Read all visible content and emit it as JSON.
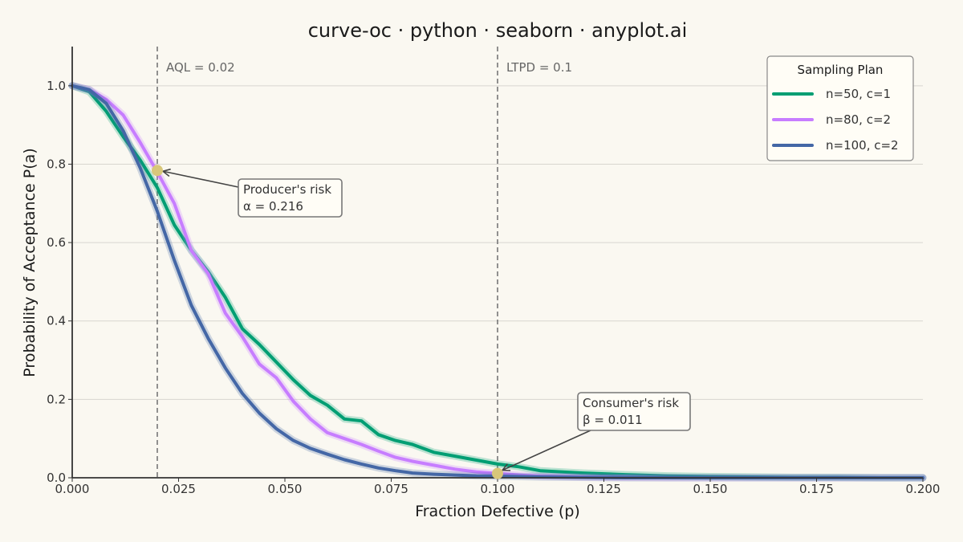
{
  "chart_data": {
    "type": "line",
    "title": "curve-oc · python · seaborn · anyplot.ai",
    "xlabel": "Fraction Defective (p)",
    "ylabel": "Probability of Acceptance P(a)",
    "xlim": [
      0,
      0.2
    ],
    "ylim": [
      0,
      1.1
    ],
    "x_ticks": [
      "0.000",
      "0.025",
      "0.050",
      "0.075",
      "0.100",
      "0.125",
      "0.150",
      "0.175",
      "0.200"
    ],
    "y_ticks": [
      "0.0",
      "0.2",
      "0.4",
      "0.6",
      "0.8",
      "1.0"
    ],
    "grid": "horizontal",
    "legend": {
      "title": "Sampling Plan",
      "placement": "top-right"
    },
    "reference_lines": [
      {
        "label": "AQL = 0.02",
        "x": 0.02
      },
      {
        "label": "LTPD = 0.1",
        "x": 0.1
      }
    ],
    "annotations": [
      {
        "lines": [
          "Producer's risk",
          "α = 0.216"
        ],
        "x": 0.02,
        "y": 0.784
      },
      {
        "lines": [
          "Consumer's risk",
          "β = 0.011"
        ],
        "x": 0.1,
        "y": 0.011
      }
    ],
    "series": [
      {
        "name": "n=50, c=1",
        "color": "#009E73",
        "x": [
          0,
          0.004,
          0.008,
          0.012,
          0.016,
          0.02,
          0.024,
          0.028,
          0.032,
          0.036,
          0.04,
          0.044,
          0.048,
          0.052,
          0.056,
          0.06,
          0.064,
          0.068,
          0.072,
          0.076,
          0.08,
          0.085,
          0.09,
          0.095,
          0.1,
          0.105,
          0.11,
          0.12,
          0.13,
          0.14,
          0.15,
          0.16,
          0.17,
          0.18,
          0.19,
          0.2
        ],
        "values": [
          1.0,
          0.985,
          0.935,
          0.87,
          0.81,
          0.74,
          0.645,
          0.58,
          0.525,
          0.46,
          0.38,
          0.34,
          0.295,
          0.25,
          0.21,
          0.185,
          0.15,
          0.145,
          0.11,
          0.095,
          0.085,
          0.065,
          0.055,
          0.045,
          0.035,
          0.028,
          0.018,
          0.012,
          0.008,
          0.005,
          0.003,
          0.002,
          0.001,
          0.001,
          0.0,
          0.0
        ]
      },
      {
        "name": "n=80, c=2",
        "color": "#C77DFF",
        "x": [
          0,
          0.004,
          0.008,
          0.012,
          0.016,
          0.02,
          0.024,
          0.028,
          0.032,
          0.036,
          0.04,
          0.044,
          0.048,
          0.052,
          0.056,
          0.06,
          0.064,
          0.068,
          0.072,
          0.076,
          0.08,
          0.085,
          0.09,
          0.095,
          0.1,
          0.105,
          0.11,
          0.12,
          0.13,
          0.14,
          0.15,
          0.16,
          0.17,
          0.18,
          0.19,
          0.2
        ],
        "values": [
          1.0,
          0.99,
          0.965,
          0.925,
          0.855,
          0.78,
          0.7,
          0.58,
          0.52,
          0.42,
          0.36,
          0.29,
          0.255,
          0.195,
          0.15,
          0.115,
          0.1,
          0.085,
          0.068,
          0.052,
          0.042,
          0.032,
          0.022,
          0.015,
          0.011,
          0.007,
          0.004,
          0.002,
          0.001,
          0.0,
          0.0,
          0.0,
          0.0,
          0.0,
          0.0,
          0.0
        ]
      },
      {
        "name": "n=100, c=2",
        "color": "#4467A6",
        "x": [
          0,
          0.004,
          0.008,
          0.012,
          0.016,
          0.02,
          0.024,
          0.028,
          0.032,
          0.036,
          0.04,
          0.044,
          0.048,
          0.052,
          0.056,
          0.06,
          0.064,
          0.068,
          0.072,
          0.076,
          0.08,
          0.085,
          0.09,
          0.095,
          0.1,
          0.105,
          0.11,
          0.12,
          0.13,
          0.14,
          0.15,
          0.16,
          0.17,
          0.18,
          0.19,
          0.2
        ],
        "values": [
          1.0,
          0.99,
          0.955,
          0.885,
          0.79,
          0.68,
          0.555,
          0.44,
          0.355,
          0.28,
          0.215,
          0.165,
          0.125,
          0.095,
          0.075,
          0.06,
          0.046,
          0.035,
          0.025,
          0.018,
          0.012,
          0.009,
          0.007,
          0.005,
          0.004,
          0.003,
          0.002,
          0.001,
          0.0,
          0.0,
          0.0,
          0.0,
          0.0,
          0.0,
          0.0,
          0.0
        ]
      }
    ]
  }
}
